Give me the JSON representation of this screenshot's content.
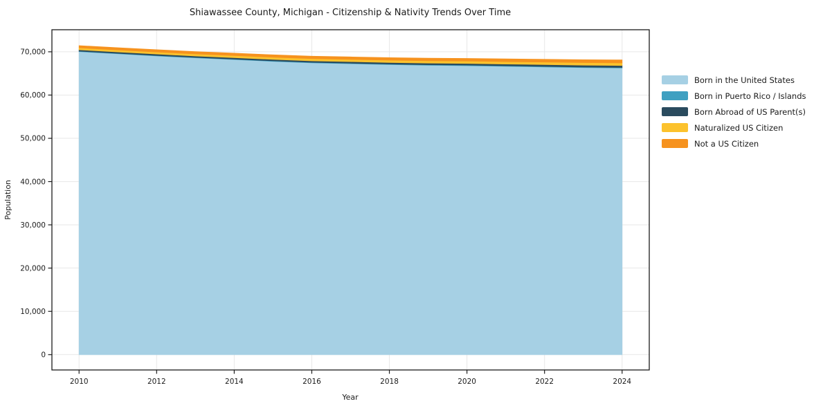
{
  "chart_data": {
    "type": "area",
    "stacked": true,
    "title": "Shiawassee County, Michigan - Citizenship & Nativity Trends Over Time",
    "xlabel": "Year",
    "ylabel": "Population",
    "x": [
      2010,
      2011,
      2012,
      2013,
      2014,
      2015,
      2016,
      2017,
      2018,
      2019,
      2020,
      2021,
      2022,
      2023,
      2024
    ],
    "series": [
      {
        "name": "Born in the United States",
        "color": "#a6d0e4",
        "values": [
          70050,
          69550,
          69050,
          68600,
          68200,
          67800,
          67450,
          67250,
          67050,
          66900,
          66800,
          66650,
          66500,
          66350,
          66250
        ]
      },
      {
        "name": "Born in Puerto Rico / Islands",
        "color": "#3fa0c1",
        "values": [
          100,
          100,
          105,
          105,
          110,
          110,
          115,
          115,
          120,
          120,
          125,
          125,
          130,
          130,
          135
        ]
      },
      {
        "name": "Born Abroad of US Parent(s)",
        "color": "#2a4b5e",
        "values": [
          320,
          320,
          325,
          330,
          335,
          340,
          350,
          360,
          370,
          380,
          390,
          400,
          420,
          435,
          450
        ]
      },
      {
        "name": "Naturalized US Citizen",
        "color": "#fcc22d",
        "values": [
          450,
          460,
          470,
          480,
          490,
          500,
          510,
          520,
          530,
          540,
          550,
          565,
          580,
          590,
          600
        ]
      },
      {
        "name": "Not a US Citizen",
        "color": "#f6921e",
        "values": [
          500,
          510,
          520,
          530,
          540,
          550,
          560,
          570,
          580,
          590,
          600,
          620,
          640,
          660,
          680
        ]
      }
    ],
    "xticks": [
      2010,
      2012,
      2014,
      2016,
      2018,
      2020,
      2022,
      2024
    ],
    "yticks": [
      0,
      10000,
      20000,
      30000,
      40000,
      50000,
      60000,
      70000
    ],
    "xlim": [
      2009.3,
      2024.7
    ],
    "ylim": [
      -3550,
      75100
    ],
    "grid": true,
    "grid_color": "#e7e7e7",
    "spine_color": "#1a1a1a",
    "background": "#ffffff",
    "legend_position": "right-outside"
  }
}
